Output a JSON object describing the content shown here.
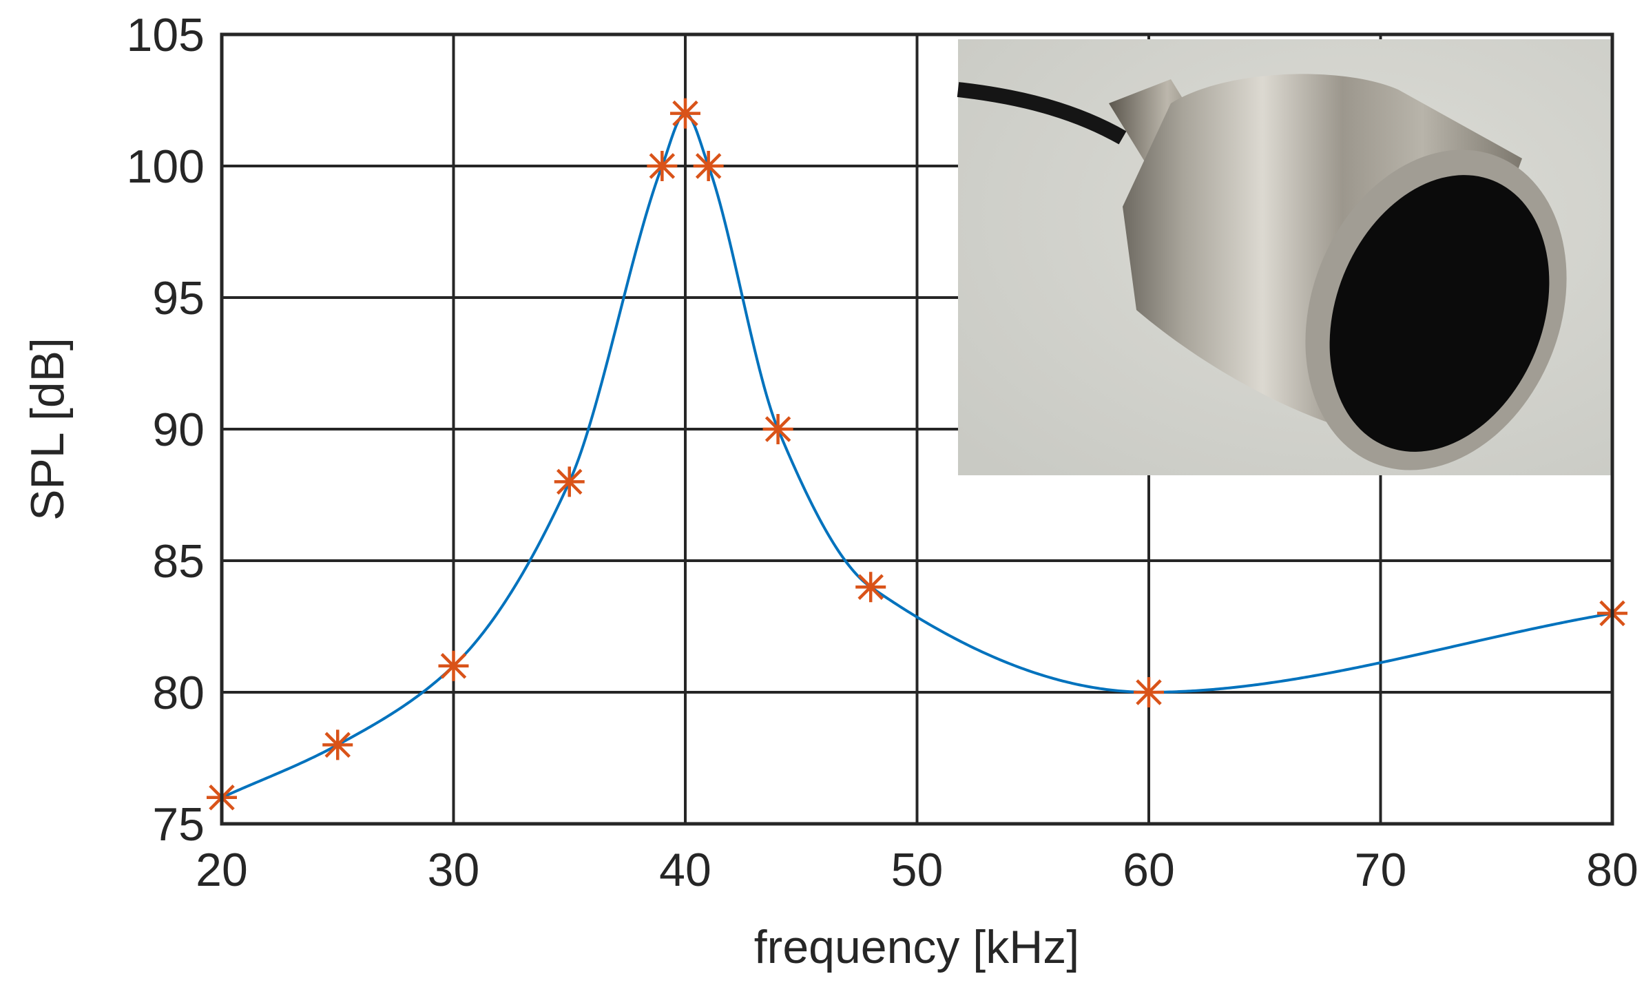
{
  "chart_data": {
    "type": "line",
    "xlabel": "frequency [kHz]",
    "ylabel": "SPL [dB]",
    "xlim": [
      20,
      80
    ],
    "ylim": [
      75,
      105
    ],
    "xticks": [
      20,
      30,
      40,
      50,
      60,
      70,
      80
    ],
    "yticks": [
      75,
      80,
      85,
      90,
      95,
      100,
      105
    ],
    "grid": true,
    "series": [
      {
        "color": "#0072BD",
        "marker_color": "#D95319",
        "marker": "asterisk",
        "line": "smooth",
        "x": [
          20,
          25,
          30,
          35,
          39,
          40,
          41,
          44,
          48,
          60,
          80
        ],
        "y": [
          76,
          78,
          81,
          88,
          100,
          102,
          100,
          90,
          84,
          80,
          83
        ]
      }
    ],
    "inset_image": {
      "description_icon": "transducer-photo",
      "placement": "top-right"
    }
  }
}
